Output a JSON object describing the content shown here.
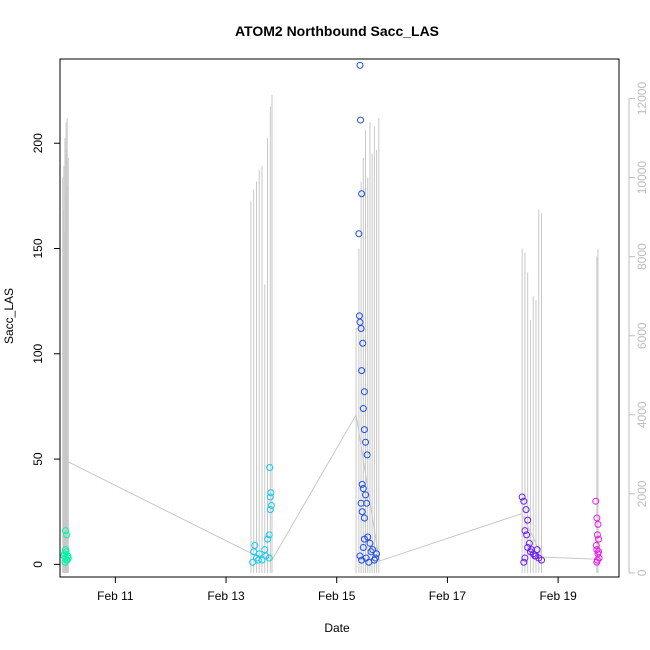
{
  "chart_data": {
    "type": "scatter",
    "title": "ATOM2 Northbound Sacc_LAS",
    "xlabel": "Date",
    "ylabel": "Sacc_LAS",
    "x_ticks": [
      "Feb 11",
      "Feb 13",
      "Feb 15",
      "Feb 17",
      "Feb 19"
    ],
    "x_tick_values": [
      11,
      13,
      15,
      17,
      19
    ],
    "xlim": [
      10.0,
      20.1
    ],
    "ylim": [
      -6,
      240
    ],
    "y_ticks": [
      0,
      50,
      100,
      150,
      200
    ],
    "y2lim": [
      -103,
      13000
    ],
    "y2_ticks": [
      0,
      2000,
      4000,
      6000,
      8000,
      10000,
      12000
    ],
    "grid": false,
    "legend": "none",
    "colors": {
      "line": "#c8c8c8",
      "axis": "#000000",
      "y2_axis": "#bebebe",
      "group_palette": [
        "#00f5a8",
        "#15c8ef",
        "#1e4fe6",
        "#6a1fee",
        "#e61be6"
      ]
    },
    "series": [
      {
        "x": [
          10.08,
          10.1,
          10.12,
          10.14,
          10.1,
          10.12,
          10.15,
          10.09,
          10.11,
          10.13,
          10.07,
          10.1
        ],
        "y": [
          5,
          3,
          2,
          4,
          16,
          14,
          3,
          1,
          6,
          2,
          4,
          7
        ]
      },
      {
        "x": [
          13.48,
          13.52,
          13.55,
          13.6,
          13.65,
          13.7,
          13.75,
          13.78,
          13.8,
          13.82,
          13.8,
          13.81,
          13.79,
          13.5,
          13.58,
          13.72,
          13.78
        ],
        "y": [
          1,
          9,
          3,
          5,
          2,
          7,
          12,
          14,
          26,
          28,
          32,
          34,
          46,
          6,
          2,
          4,
          3
        ]
      },
      {
        "x": [
          15.42,
          15.43,
          15.45,
          15.4,
          15.41,
          15.44,
          15.47,
          15.42,
          15.45,
          15.5,
          15.48,
          15.5,
          15.52,
          15.55,
          15.46,
          15.48,
          15.52,
          15.54,
          15.44,
          15.46,
          15.5,
          15.56,
          15.6,
          15.65,
          15.7,
          15.45,
          15.42,
          15.58,
          15.62,
          15.68,
          15.72,
          15.48,
          15.5,
          15.53
        ],
        "y": [
          237,
          211,
          176,
          157,
          118,
          112,
          105,
          115,
          92,
          82,
          74,
          64,
          58,
          52,
          38,
          36,
          33,
          29,
          29,
          25,
          22,
          13,
          10,
          7,
          3,
          2,
          4,
          1,
          6,
          2,
          5,
          8,
          12,
          3
        ]
      },
      {
        "x": [
          18.35,
          18.38,
          18.42,
          18.45,
          18.4,
          18.43,
          18.48,
          18.52,
          18.55,
          18.6,
          18.65,
          18.7,
          18.45,
          18.5,
          18.4,
          18.58,
          18.62,
          18.38
        ],
        "y": [
          32,
          30,
          26,
          21,
          16,
          14,
          10,
          7,
          5,
          4,
          3,
          2,
          8,
          6,
          3,
          4,
          7,
          1
        ]
      },
      {
        "x": [
          19.68,
          19.7,
          19.72,
          19.71,
          19.73,
          19.69,
          19.7,
          19.72,
          19.74,
          19.71,
          19.7,
          19.73
        ],
        "y": [
          30,
          22,
          19,
          14,
          12,
          9,
          7,
          5,
          3,
          2,
          1,
          6
        ]
      }
    ],
    "y2_series": {
      "segments": [
        {
          "x": [
            10.05,
            10.06,
            10.07,
            10.08,
            10.09,
            10.1,
            10.11,
            10.12,
            10.13,
            10.14,
            10.15
          ],
          "peaks": [
            10000,
            9200,
            10300,
            8600,
            11000,
            9600,
            11400,
            10700,
            11500,
            9800,
            10500
          ]
        },
        {
          "x": [
            13.45,
            13.5,
            13.55,
            13.6,
            13.65,
            13.7,
            13.75,
            13.8,
            13.83
          ],
          "peaks": [
            9400,
            9700,
            9900,
            10200,
            10300,
            7300,
            11000,
            11800,
            12100
          ]
        },
        {
          "x": [
            15.35,
            15.4,
            15.44,
            15.48,
            15.52,
            15.56,
            15.6,
            15.64,
            15.68,
            15.72,
            15.76
          ],
          "peaks": [
            6200,
            8200,
            9900,
            10500,
            11200,
            10000,
            11400,
            10600,
            11300,
            10700,
            11500
          ]
        },
        {
          "x": [
            18.35,
            18.4,
            18.45,
            18.5,
            18.55,
            18.6,
            18.65,
            18.7
          ],
          "peaks": [
            8200,
            8100,
            7600,
            6400,
            7000,
            6900,
            9200,
            9100
          ]
        },
        {
          "x": [
            19.7,
            19.72
          ],
          "peaks": [
            8000,
            8200
          ]
        }
      ],
      "connector": {
        "x": [
          10.16,
          13.45,
          13.84,
          15.35,
          15.77,
          18.34,
          18.72,
          19.69
        ],
        "y": [
          2800,
          500,
          350,
          4000,
          300,
          1500,
          400,
          350
        ]
      }
    }
  }
}
